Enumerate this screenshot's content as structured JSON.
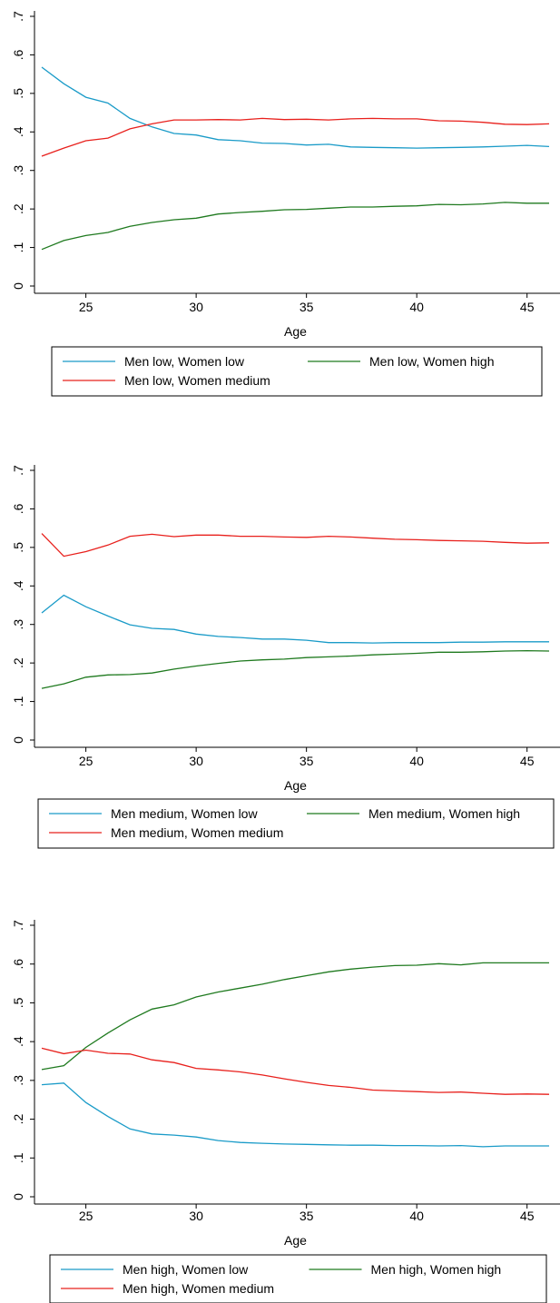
{
  "chart_data": [
    {
      "type": "line",
      "xlabel": "Age",
      "ylabel": "",
      "xlim": [
        23,
        46
      ],
      "ylim": [
        0,
        0.7
      ],
      "xticks": [
        25,
        30,
        35,
        40,
        45
      ],
      "yticks": [
        0,
        0.1,
        0.2,
        0.3,
        0.4,
        0.5,
        0.6,
        0.7
      ],
      "ytick_labels": [
        "0",
        ".1",
        ".2",
        ".3",
        ".4",
        ".5",
        ".6",
        ".7"
      ],
      "x": [
        23,
        24,
        25,
        26,
        27,
        28,
        29,
        30,
        31,
        32,
        33,
        34,
        35,
        36,
        37,
        38,
        39,
        40,
        41,
        42,
        43,
        44,
        45,
        46
      ],
      "series": [
        {
          "name": "Men low, Women low",
          "color": "#1a9bc8",
          "values": [
            0.568,
            0.525,
            0.49,
            0.475,
            0.435,
            0.413,
            0.396,
            0.392,
            0.38,
            0.377,
            0.371,
            0.37,
            0.366,
            0.368,
            0.361,
            0.36,
            0.359,
            0.358,
            0.359,
            0.36,
            0.361,
            0.363,
            0.365,
            0.362
          ]
        },
        {
          "name": "Men low, Women high",
          "color": "#1f7a1f",
          "values": [
            0.095,
            0.118,
            0.131,
            0.139,
            0.155,
            0.165,
            0.172,
            0.176,
            0.187,
            0.191,
            0.194,
            0.198,
            0.199,
            0.202,
            0.205,
            0.205,
            0.207,
            0.208,
            0.212,
            0.211,
            0.213,
            0.217,
            0.215,
            0.215
          ]
        },
        {
          "name": "Men low, Women medium",
          "color": "#e8201c",
          "values": [
            0.337,
            0.358,
            0.377,
            0.384,
            0.408,
            0.421,
            0.431,
            0.431,
            0.432,
            0.431,
            0.435,
            0.432,
            0.433,
            0.431,
            0.434,
            0.435,
            0.434,
            0.434,
            0.429,
            0.428,
            0.425,
            0.42,
            0.419,
            0.421
          ]
        }
      ],
      "legend": {
        "placement": "bottom",
        "columns": 2
      }
    },
    {
      "type": "line",
      "xlabel": "Age",
      "ylabel": "",
      "xlim": [
        23,
        46
      ],
      "ylim": [
        0,
        0.7
      ],
      "xticks": [
        25,
        30,
        35,
        40,
        45
      ],
      "yticks": [
        0,
        0.1,
        0.2,
        0.3,
        0.4,
        0.5,
        0.6,
        0.7
      ],
      "ytick_labels": [
        "0",
        ".1",
        ".2",
        ".3",
        ".4",
        ".5",
        ".6",
        ".7"
      ],
      "x": [
        23,
        24,
        25,
        26,
        27,
        28,
        29,
        30,
        31,
        32,
        33,
        34,
        35,
        36,
        37,
        38,
        39,
        40,
        41,
        42,
        43,
        44,
        45,
        46
      ],
      "series": [
        {
          "name": "Men medium, Women low",
          "color": "#1a9bc8",
          "values": [
            0.33,
            0.376,
            0.346,
            0.322,
            0.299,
            0.29,
            0.287,
            0.275,
            0.269,
            0.266,
            0.262,
            0.262,
            0.259,
            0.253,
            0.253,
            0.252,
            0.253,
            0.253,
            0.253,
            0.254,
            0.254,
            0.255,
            0.255,
            0.255
          ]
        },
        {
          "name": "Men medium, Women high",
          "color": "#1f7a1f",
          "values": [
            0.134,
            0.146,
            0.163,
            0.169,
            0.17,
            0.174,
            0.184,
            0.192,
            0.199,
            0.205,
            0.208,
            0.21,
            0.214,
            0.216,
            0.218,
            0.221,
            0.223,
            0.225,
            0.228,
            0.228,
            0.229,
            0.231,
            0.232,
            0.231
          ]
        },
        {
          "name": "Men medium, Women medium",
          "color": "#e8201c",
          "values": [
            0.536,
            0.477,
            0.489,
            0.506,
            0.529,
            0.534,
            0.528,
            0.532,
            0.532,
            0.529,
            0.529,
            0.527,
            0.526,
            0.529,
            0.527,
            0.524,
            0.521,
            0.52,
            0.518,
            0.517,
            0.516,
            0.513,
            0.511,
            0.512
          ]
        }
      ],
      "legend": {
        "placement": "bottom",
        "columns": 2
      }
    },
    {
      "type": "line",
      "xlabel": "Age",
      "ylabel": "",
      "xlim": [
        23,
        46
      ],
      "ylim": [
        0,
        0.7
      ],
      "xticks": [
        25,
        30,
        35,
        40,
        45
      ],
      "yticks": [
        0,
        0.1,
        0.2,
        0.3,
        0.4,
        0.5,
        0.6,
        0.7
      ],
      "ytick_labels": [
        "0",
        ".1",
        ".2",
        ".3",
        ".4",
        ".5",
        ".6",
        ".7"
      ],
      "x": [
        23,
        24,
        25,
        26,
        27,
        28,
        29,
        30,
        31,
        32,
        33,
        34,
        35,
        36,
        37,
        38,
        39,
        40,
        41,
        42,
        43,
        44,
        45,
        46
      ],
      "series": [
        {
          "name": "Men high, Women low",
          "color": "#1a9bc8",
          "values": [
            0.289,
            0.293,
            0.243,
            0.207,
            0.175,
            0.162,
            0.159,
            0.154,
            0.145,
            0.14,
            0.138,
            0.136,
            0.135,
            0.134,
            0.133,
            0.133,
            0.132,
            0.132,
            0.131,
            0.132,
            0.129,
            0.131,
            0.131,
            0.131
          ]
        },
        {
          "name": "Men high, Women high",
          "color": "#1f7a1f",
          "values": [
            0.328,
            0.338,
            0.385,
            0.422,
            0.456,
            0.484,
            0.495,
            0.515,
            0.528,
            0.538,
            0.548,
            0.56,
            0.57,
            0.58,
            0.587,
            0.592,
            0.596,
            0.597,
            0.601,
            0.598,
            0.603,
            0.603,
            0.603,
            0.603
          ]
        },
        {
          "name": "Men high, Women medium",
          "color": "#e8201c",
          "values": [
            0.383,
            0.369,
            0.378,
            0.37,
            0.368,
            0.353,
            0.346,
            0.331,
            0.327,
            0.322,
            0.314,
            0.304,
            0.295,
            0.287,
            0.282,
            0.275,
            0.273,
            0.271,
            0.269,
            0.27,
            0.267,
            0.264,
            0.265,
            0.264
          ]
        }
      ],
      "legend": {
        "placement": "bottom",
        "columns": 2
      }
    }
  ]
}
